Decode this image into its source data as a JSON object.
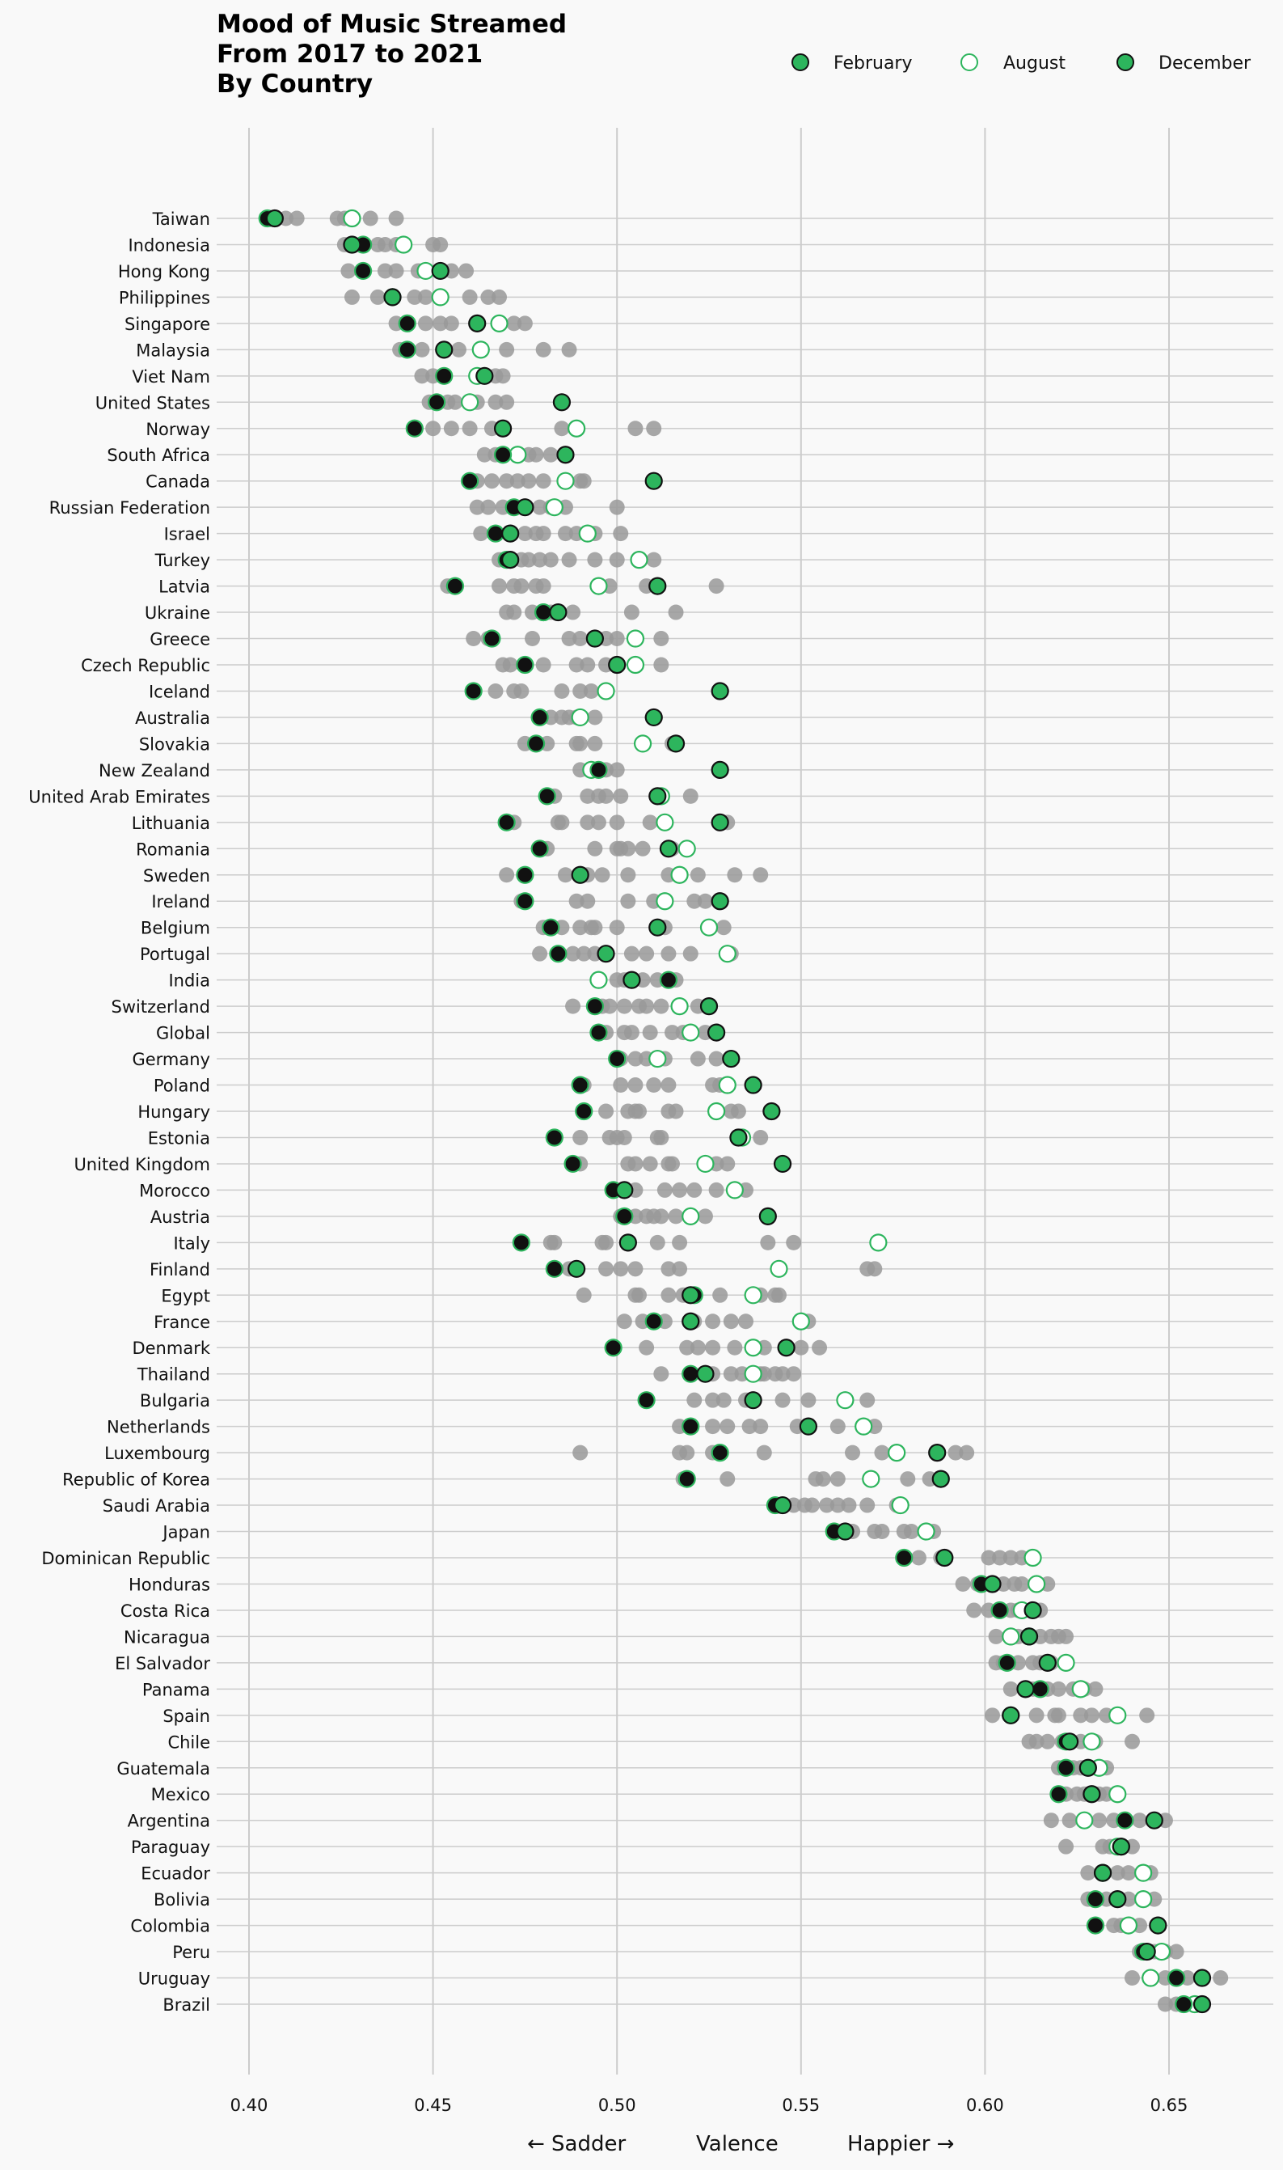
{
  "chart_data": {
    "type": "scatter",
    "title": [
      "Mood of Music Streamed",
      "From 2017 to 2021",
      "By Country"
    ],
    "xlabel": "Valence",
    "xlabel_left": "← Sadder",
    "xlabel_right": "Happier →",
    "xlim": [
      0.4,
      0.68
    ],
    "xticks": [
      "0.40",
      "0.45",
      "0.50",
      "0.55",
      "0.60",
      "0.65"
    ],
    "grid": "vertical at ticks, horizontal per country",
    "legend_position": "top-right",
    "legend": [
      {
        "name": "February",
        "style": "green-fill-dark-edge"
      },
      {
        "name": "August",
        "style": "white-fill-green-edge"
      },
      {
        "name": "December",
        "style": "green-fill-dark-edge"
      }
    ],
    "colors": {
      "green": "#2db55d",
      "dark": "#111111",
      "gray": "#999999",
      "gridline": "#cccccc",
      "background": "#f9f9f9"
    },
    "countries": [
      {
        "name": "Taiwan",
        "feb": 0.405,
        "aug": 0.428,
        "dec": 0.407,
        "others": [
          0.41,
          0.413,
          0.424,
          0.426,
          0.433,
          0.44
        ]
      },
      {
        "name": "Indonesia",
        "feb": 0.431,
        "aug": 0.442,
        "dec": 0.428,
        "others": [
          0.426,
          0.435,
          0.437,
          0.44,
          0.45,
          0.452
        ]
      },
      {
        "name": "Hong Kong",
        "feb": 0.431,
        "aug": 0.448,
        "dec": 0.452,
        "others": [
          0.427,
          0.437,
          0.44,
          0.446,
          0.455,
          0.459
        ]
      },
      {
        "name": "Philippines",
        "feb": 0.439,
        "aug": 0.452,
        "dec": 0.439,
        "others": [
          0.428,
          0.435,
          0.445,
          0.448,
          0.46,
          0.465,
          0.468
        ]
      },
      {
        "name": "Singapore",
        "feb": 0.443,
        "aug": 0.468,
        "dec": 0.462,
        "others": [
          0.44,
          0.448,
          0.452,
          0.455,
          0.472,
          0.475
        ]
      },
      {
        "name": "Malaysia",
        "feb": 0.443,
        "aug": 0.463,
        "dec": 0.453,
        "others": [
          0.441,
          0.447,
          0.457,
          0.47,
          0.48,
          0.487
        ]
      },
      {
        "name": "Viet Nam",
        "feb": 0.453,
        "aug": 0.462,
        "dec": 0.464,
        "others": [
          0.447,
          0.45,
          0.467,
          0.469
        ]
      },
      {
        "name": "United States",
        "feb": 0.451,
        "aug": 0.46,
        "dec": 0.485,
        "others": [
          0.449,
          0.454,
          0.456,
          0.462,
          0.467,
          0.47
        ]
      },
      {
        "name": "Norway",
        "feb": 0.445,
        "aug": 0.489,
        "dec": 0.469,
        "others": [
          0.45,
          0.455,
          0.46,
          0.466,
          0.485,
          0.505,
          0.51
        ]
      },
      {
        "name": "South Africa",
        "feb": 0.469,
        "aug": 0.473,
        "dec": 0.486,
        "others": [
          0.464,
          0.467,
          0.476,
          0.478,
          0.482
        ]
      },
      {
        "name": "Canada",
        "feb": 0.46,
        "aug": 0.486,
        "dec": 0.51,
        "others": [
          0.462,
          0.466,
          0.47,
          0.473,
          0.476,
          0.48,
          0.49,
          0.491
        ]
      },
      {
        "name": "Russian Federation",
        "feb": 0.472,
        "aug": 0.483,
        "dec": 0.475,
        "others": [
          0.462,
          0.465,
          0.469,
          0.479,
          0.482,
          0.486,
          0.5
        ]
      },
      {
        "name": "Israel",
        "feb": 0.467,
        "aug": 0.492,
        "dec": 0.471,
        "others": [
          0.463,
          0.475,
          0.478,
          0.48,
          0.486,
          0.489,
          0.494,
          0.501
        ]
      },
      {
        "name": "Turkey",
        "feb": 0.47,
        "aug": 0.506,
        "dec": 0.471,
        "others": [
          0.468,
          0.474,
          0.476,
          0.479,
          0.482,
          0.487,
          0.494,
          0.5,
          0.51
        ]
      },
      {
        "name": "Latvia",
        "feb": 0.456,
        "aug": 0.495,
        "dec": 0.511,
        "others": [
          0.454,
          0.468,
          0.472,
          0.474,
          0.478,
          0.48,
          0.498,
          0.508,
          0.527
        ]
      },
      {
        "name": "Ukraine",
        "feb": 0.48,
        "aug": 0.48,
        "dec": 0.484,
        "others": [
          0.47,
          0.472,
          0.477,
          0.482,
          0.488,
          0.504,
          0.516
        ]
      },
      {
        "name": "Greece",
        "feb": 0.466,
        "aug": 0.505,
        "dec": 0.494,
        "others": [
          0.461,
          0.465,
          0.477,
          0.487,
          0.49,
          0.497,
          0.5,
          0.512
        ]
      },
      {
        "name": "Czech Republic",
        "feb": 0.475,
        "aug": 0.505,
        "dec": 0.5,
        "others": [
          0.469,
          0.471,
          0.48,
          0.489,
          0.492,
          0.497,
          0.512
        ]
      },
      {
        "name": "Iceland",
        "feb": 0.461,
        "aug": 0.497,
        "dec": 0.528,
        "others": [
          0.467,
          0.472,
          0.474,
          0.485,
          0.49,
          0.493
        ]
      },
      {
        "name": "Australia",
        "feb": 0.479,
        "aug": 0.49,
        "dec": 0.51,
        "others": [
          0.482,
          0.485,
          0.487,
          0.489,
          0.494
        ]
      },
      {
        "name": "Slovakia",
        "feb": 0.478,
        "aug": 0.507,
        "dec": 0.516,
        "others": [
          0.475,
          0.481,
          0.489,
          0.49,
          0.494,
          0.515
        ]
      },
      {
        "name": "New Zealand",
        "feb": 0.495,
        "aug": 0.493,
        "dec": 0.528,
        "others": [
          0.49,
          0.497,
          0.5
        ]
      },
      {
        "name": "United Arab Emirates",
        "feb": 0.481,
        "aug": 0.512,
        "dec": 0.511,
        "others": [
          0.483,
          0.492,
          0.495,
          0.497,
          0.501,
          0.52
        ]
      },
      {
        "name": "Lithuania",
        "feb": 0.47,
        "aug": 0.513,
        "dec": 0.528,
        "others": [
          0.472,
          0.484,
          0.485,
          0.492,
          0.495,
          0.5,
          0.509,
          0.53
        ]
      },
      {
        "name": "Romania",
        "feb": 0.479,
        "aug": 0.519,
        "dec": 0.514,
        "others": [
          0.481,
          0.494,
          0.5,
          0.501,
          0.503,
          0.507,
          0.515
        ]
      },
      {
        "name": "Sweden",
        "feb": 0.475,
        "aug": 0.517,
        "dec": 0.49,
        "others": [
          0.47,
          0.486,
          0.492,
          0.496,
          0.503,
          0.514,
          0.522,
          0.532,
          0.539
        ]
      },
      {
        "name": "Ireland",
        "feb": 0.475,
        "aug": 0.513,
        "dec": 0.528,
        "others": [
          0.474,
          0.489,
          0.492,
          0.503,
          0.51,
          0.521,
          0.524
        ]
      },
      {
        "name": "Belgium",
        "feb": 0.482,
        "aug": 0.525,
        "dec": 0.511,
        "others": [
          0.48,
          0.485,
          0.49,
          0.493,
          0.494,
          0.5,
          0.513,
          0.529
        ]
      },
      {
        "name": "Portugal",
        "feb": 0.484,
        "aug": 0.53,
        "dec": 0.497,
        "others": [
          0.479,
          0.488,
          0.491,
          0.494,
          0.504,
          0.508,
          0.514,
          0.52,
          0.531
        ]
      },
      {
        "name": "India",
        "feb": 0.514,
        "aug": 0.495,
        "dec": 0.504,
        "others": [
          0.5,
          0.502,
          0.507,
          0.511,
          0.516
        ]
      },
      {
        "name": "Switzerland",
        "feb": 0.494,
        "aug": 0.517,
        "dec": 0.525,
        "others": [
          0.488,
          0.496,
          0.498,
          0.502,
          0.506,
          0.508,
          0.512,
          0.522
        ]
      },
      {
        "name": "Global",
        "feb": 0.495,
        "aug": 0.52,
        "dec": 0.527,
        "others": [
          0.497,
          0.502,
          0.504,
          0.509,
          0.515,
          0.518,
          0.524
        ]
      },
      {
        "name": "Germany",
        "feb": 0.5,
        "aug": 0.511,
        "dec": 0.531,
        "others": [
          0.501,
          0.505,
          0.508,
          0.513,
          0.522,
          0.527
        ]
      },
      {
        "name": "Poland",
        "feb": 0.49,
        "aug": 0.53,
        "dec": 0.537,
        "others": [
          0.491,
          0.501,
          0.505,
          0.51,
          0.514,
          0.526,
          0.528
        ]
      },
      {
        "name": "Hungary",
        "feb": 0.491,
        "aug": 0.527,
        "dec": 0.542,
        "others": [
          0.497,
          0.503,
          0.505,
          0.506,
          0.514,
          0.516,
          0.531,
          0.533
        ]
      },
      {
        "name": "Estonia",
        "feb": 0.483,
        "aug": 0.534,
        "dec": 0.533,
        "others": [
          0.49,
          0.498,
          0.5,
          0.502,
          0.511,
          0.512,
          0.539
        ]
      },
      {
        "name": "United Kingdom",
        "feb": 0.488,
        "aug": 0.524,
        "dec": 0.545,
        "others": [
          0.49,
          0.503,
          0.505,
          0.509,
          0.514,
          0.515,
          0.527,
          0.53
        ]
      },
      {
        "name": "Morocco",
        "feb": 0.499,
        "aug": 0.532,
        "dec": 0.502,
        "others": [
          0.505,
          0.513,
          0.517,
          0.521,
          0.527,
          0.535
        ]
      },
      {
        "name": "Austria",
        "feb": 0.502,
        "aug": 0.52,
        "dec": 0.541,
        "others": [
          0.501,
          0.505,
          0.508,
          0.51,
          0.512,
          0.516,
          0.524
        ]
      },
      {
        "name": "Italy",
        "feb": 0.474,
        "aug": 0.571,
        "dec": 0.503,
        "others": [
          0.482,
          0.483,
          0.496,
          0.497,
          0.511,
          0.517,
          0.541,
          0.548
        ]
      },
      {
        "name": "Finland",
        "feb": 0.483,
        "aug": 0.544,
        "dec": 0.489,
        "others": [
          0.487,
          0.497,
          0.501,
          0.505,
          0.514,
          0.517,
          0.568,
          0.57
        ]
      },
      {
        "name": "Egypt",
        "feb": 0.521,
        "aug": 0.537,
        "dec": 0.52,
        "others": [
          0.491,
          0.505,
          0.506,
          0.514,
          0.518,
          0.528,
          0.539,
          0.543,
          0.544
        ]
      },
      {
        "name": "France",
        "feb": 0.51,
        "aug": 0.55,
        "dec": 0.52,
        "others": [
          0.502,
          0.507,
          0.513,
          0.521,
          0.526,
          0.531,
          0.535,
          0.552
        ]
      },
      {
        "name": "Denmark",
        "feb": 0.499,
        "aug": 0.537,
        "dec": 0.546,
        "others": [
          0.508,
          0.519,
          0.522,
          0.526,
          0.532,
          0.54,
          0.55,
          0.555
        ]
      },
      {
        "name": "Thailand",
        "feb": 0.52,
        "aug": 0.537,
        "dec": 0.524,
        "others": [
          0.512,
          0.526,
          0.531,
          0.534,
          0.539,
          0.54,
          0.543,
          0.545,
          0.548
        ]
      },
      {
        "name": "Bulgaria",
        "feb": 0.508,
        "aug": 0.562,
        "dec": 0.537,
        "others": [
          0.521,
          0.526,
          0.529,
          0.535,
          0.545,
          0.552,
          0.568
        ]
      },
      {
        "name": "Netherlands",
        "feb": 0.52,
        "aug": 0.567,
        "dec": 0.552,
        "others": [
          0.517,
          0.526,
          0.53,
          0.536,
          0.539,
          0.549,
          0.56,
          0.57
        ]
      },
      {
        "name": "Luxembourg",
        "feb": 0.528,
        "aug": 0.576,
        "dec": 0.587,
        "others": [
          0.49,
          0.517,
          0.519,
          0.526,
          0.54,
          0.564,
          0.572,
          0.592,
          0.595
        ]
      },
      {
        "name": "Republic of Korea",
        "feb": 0.519,
        "aug": 0.569,
        "dec": 0.588,
        "others": [
          0.518,
          0.53,
          0.554,
          0.556,
          0.56,
          0.579,
          0.585
        ]
      },
      {
        "name": "Saudi Arabia",
        "feb": 0.543,
        "aug": 0.577,
        "dec": 0.545,
        "others": [
          0.548,
          0.551,
          0.553,
          0.557,
          0.56,
          0.563,
          0.568,
          0.576
        ]
      },
      {
        "name": "Japan",
        "feb": 0.559,
        "aug": 0.584,
        "dec": 0.562,
        "others": [
          0.56,
          0.564,
          0.57,
          0.572,
          0.578,
          0.58,
          0.586
        ]
      },
      {
        "name": "Dominican Republic",
        "feb": 0.578,
        "aug": 0.613,
        "dec": 0.589,
        "others": [
          0.582,
          0.588,
          0.601,
          0.604,
          0.607,
          0.61
        ]
      },
      {
        "name": "Honduras",
        "feb": 0.599,
        "aug": 0.614,
        "dec": 0.602,
        "others": [
          0.594,
          0.598,
          0.605,
          0.608,
          0.61,
          0.617
        ]
      },
      {
        "name": "Costa Rica",
        "feb": 0.604,
        "aug": 0.61,
        "dec": 0.613,
        "others": [
          0.597,
          0.601,
          0.607,
          0.609,
          0.615
        ]
      },
      {
        "name": "Nicaragua",
        "feb": 0.612,
        "aug": 0.607,
        "dec": 0.612,
        "others": [
          0.603,
          0.609,
          0.615,
          0.618,
          0.62,
          0.622
        ]
      },
      {
        "name": "El Salvador",
        "feb": 0.606,
        "aug": 0.622,
        "dec": 0.617,
        "others": [
          0.603,
          0.605,
          0.609,
          0.613,
          0.615,
          0.618
        ]
      },
      {
        "name": "Panama",
        "feb": 0.615,
        "aug": 0.626,
        "dec": 0.611,
        "others": [
          0.607,
          0.613,
          0.617,
          0.62,
          0.624,
          0.627,
          0.63
        ]
      },
      {
        "name": "Spain",
        "feb": 0.607,
        "aug": 0.636,
        "dec": 0.607,
        "others": [
          0.602,
          0.614,
          0.619,
          0.62,
          0.626,
          0.629,
          0.633,
          0.644
        ]
      },
      {
        "name": "Chile",
        "feb": 0.622,
        "aug": 0.629,
        "dec": 0.623,
        "others": [
          0.612,
          0.614,
          0.617,
          0.621,
          0.626,
          0.63,
          0.64
        ]
      },
      {
        "name": "Guatemala",
        "feb": 0.622,
        "aug": 0.631,
        "dec": 0.628,
        "others": [
          0.62,
          0.624,
          0.626,
          0.633
        ]
      },
      {
        "name": "Mexico",
        "feb": 0.62,
        "aug": 0.636,
        "dec": 0.629,
        "others": [
          0.622,
          0.625,
          0.627,
          0.631,
          0.633
        ]
      },
      {
        "name": "Argentina",
        "feb": 0.638,
        "aug": 0.627,
        "dec": 0.646,
        "others": [
          0.618,
          0.623,
          0.631,
          0.635,
          0.642,
          0.649
        ]
      },
      {
        "name": "Paraguay",
        "feb": 0.637,
        "aug": 0.636,
        "dec": 0.637,
        "others": [
          0.622,
          0.632,
          0.634,
          0.64
        ]
      },
      {
        "name": "Ecuador",
        "feb": 0.632,
        "aug": 0.643,
        "dec": 0.632,
        "others": [
          0.628,
          0.636,
          0.639,
          0.645
        ]
      },
      {
        "name": "Bolivia",
        "feb": 0.63,
        "aug": 0.643,
        "dec": 0.636,
        "others": [
          0.628,
          0.633,
          0.639,
          0.646
        ]
      },
      {
        "name": "Colombia",
        "feb": 0.63,
        "aug": 0.639,
        "dec": 0.647,
        "others": [
          0.635,
          0.637,
          0.642
        ]
      },
      {
        "name": "Peru",
        "feb": 0.643,
        "aug": 0.648,
        "dec": 0.644,
        "others": [
          0.642,
          0.646,
          0.649,
          0.652
        ]
      },
      {
        "name": "Uruguay",
        "feb": 0.652,
        "aug": 0.645,
        "dec": 0.659,
        "others": [
          0.64,
          0.649,
          0.655,
          0.664
        ]
      },
      {
        "name": "Brazil",
        "feb": 0.654,
        "aug": 0.657,
        "dec": 0.659,
        "others": [
          0.649,
          0.652,
          0.655
        ]
      }
    ]
  }
}
